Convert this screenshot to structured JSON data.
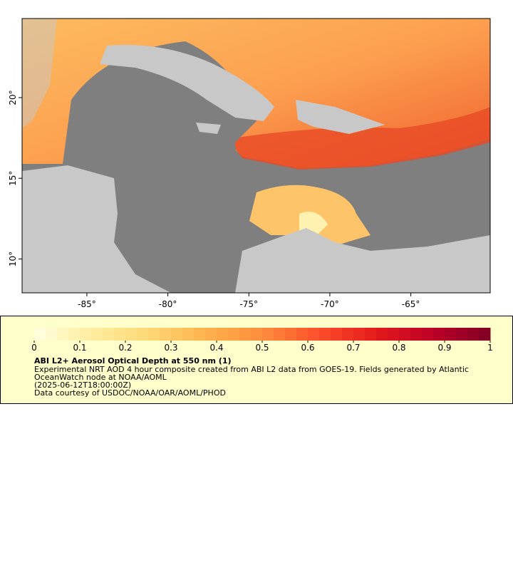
{
  "map": {
    "xlim": [
      -89,
      -60.1
    ],
    "ylim": [
      7.9,
      24.9
    ],
    "xticks": [
      {
        "value": -85,
        "label": "-85°"
      },
      {
        "value": -80,
        "label": "-80°"
      },
      {
        "value": -75,
        "label": "-75°"
      },
      {
        "value": -70,
        "label": "-70°"
      },
      {
        "value": -65,
        "label": "-65°"
      }
    ],
    "yticks": [
      {
        "value": 10,
        "label": "10°"
      },
      {
        "value": 15,
        "label": "15°"
      },
      {
        "value": 20,
        "label": "20°"
      }
    ]
  },
  "colorbar": {
    "range": [
      0,
      1
    ],
    "ticks": [
      0,
      0.1,
      0.2,
      0.3,
      0.4,
      0.5,
      0.6,
      0.7,
      0.8,
      0.9,
      1
    ],
    "colors": [
      "#ffffe0",
      "#ffeda0",
      "#fed976",
      "#feb24c",
      "#fd8d3c",
      "#fc4e2a",
      "#e31a1c",
      "#bd0026",
      "#800026"
    ]
  },
  "legend": {
    "title": "ABI L2+ Aerosol Optical Depth at 550 nm (1)",
    "lines": [
      "Experimental NRT AOD 4 hour composite created from ABI L2 data from GOES-19. Fields generated by Atlantic",
      "OceanWatch node at NOAA/AOML",
      "(2025-06-12T18:00:00Z)",
      "Data courtesy of USDOC/NOAA/OAR/AOML/PHOD"
    ]
  }
}
